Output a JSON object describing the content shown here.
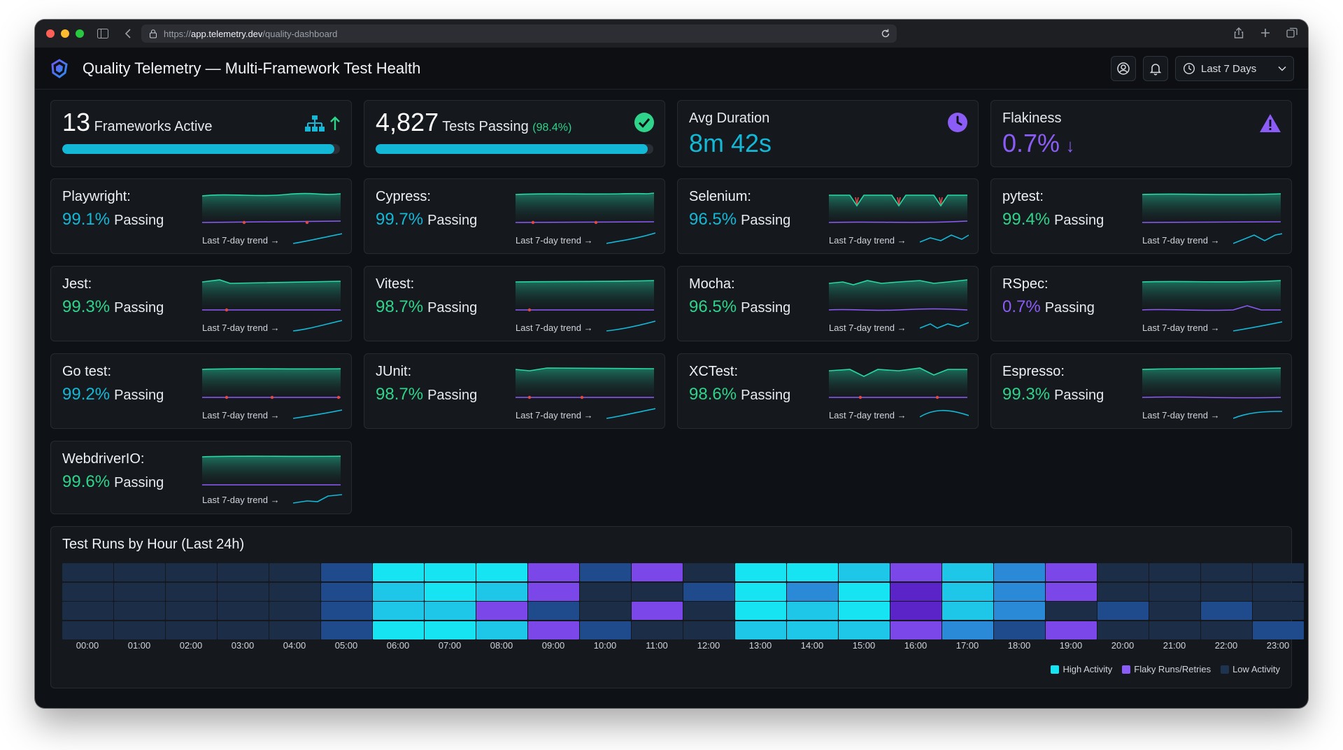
{
  "browser": {
    "url_prefix": "https://",
    "url_domain": "app.telemetry.dev",
    "url_path": "/quality-dashboard"
  },
  "header": {
    "title": "Quality Telemetry — Multi-Framework Test Health",
    "range_label": "Last 7 Days"
  },
  "kpis": {
    "frameworks": {
      "value": "13",
      "label": "Frameworks Active",
      "progress": 0.98
    },
    "passing": {
      "value": "4,827",
      "label": "Tests Passing",
      "pct": "(98.4%)",
      "progress": 0.98
    },
    "duration": {
      "label": "Avg Duration",
      "value": "8m 42s"
    },
    "flakiness": {
      "label": "Flakiness",
      "value": "0.7%",
      "arrow": "↓"
    }
  },
  "colors": {
    "cyan": "#12b8d6",
    "green": "#2fd38a",
    "purple": "#8b5cf6",
    "teal_line": "#28d7a4",
    "red": "#e04848"
  },
  "trend_label": "Last 7-day trend",
  "passing_word": "Passing",
  "frameworks": [
    {
      "name": "Playwright:",
      "pct": "99.1%",
      "color": "cyan"
    },
    {
      "name": "Cypress:",
      "pct": "99.7%",
      "color": "cyan"
    },
    {
      "name": "Selenium:",
      "pct": "96.5%",
      "color": "cyan"
    },
    {
      "name": "pytest:",
      "pct": "99.4%",
      "color": "green"
    },
    {
      "name": "Jest:",
      "pct": "99.3%",
      "color": "green"
    },
    {
      "name": "Vitest:",
      "pct": "98.7%",
      "color": "green"
    },
    {
      "name": "Mocha:",
      "pct": "96.5%",
      "color": "green"
    },
    {
      "name": "RSpec:",
      "pct": "0.7%",
      "color": "purple"
    },
    {
      "name": "Go test:",
      "pct": "99.2%",
      "color": "cyan"
    },
    {
      "name": "JUnit:",
      "pct": "98.7%",
      "color": "green"
    },
    {
      "name": "XCTest:",
      "pct": "98.6%",
      "color": "green"
    },
    {
      "name": "Espresso:",
      "pct": "99.3%",
      "color": "green"
    },
    {
      "name": "WebdriverIO:",
      "pct": "99.6%",
      "color": "green"
    }
  ],
  "heatmap": {
    "title": "Test Runs by Hour (Last 24h)",
    "hours": [
      "00:00",
      "01:00",
      "02:00",
      "03:00",
      "04:00",
      "05:00",
      "06:00",
      "07:00",
      "08:00",
      "09:00",
      "10:00",
      "11:00",
      "12:00",
      "13:00",
      "14:00",
      "15:00",
      "16:00",
      "17:00",
      "18:00",
      "19:00",
      "20:00",
      "21:00",
      "22:00",
      "23:00"
    ],
    "levels": [
      [
        "L",
        "L",
        "L",
        "L",
        "L",
        "M",
        "H",
        "H",
        "H",
        "F",
        "M",
        "F",
        "L",
        "H",
        "H",
        "H2",
        "F",
        "H2",
        "M2",
        "F",
        "L",
        "L",
        "L",
        "L"
      ],
      [
        "L",
        "L",
        "L",
        "L",
        "L",
        "M",
        "H2",
        "H",
        "H2",
        "F",
        "L",
        "L",
        "M",
        "H",
        "M2",
        "H",
        "F2",
        "H2",
        "M2",
        "F",
        "L",
        "L",
        "L",
        "L"
      ],
      [
        "L",
        "L",
        "L",
        "L",
        "L",
        "M",
        "H2",
        "H2",
        "F",
        "M",
        "L",
        "F",
        "L",
        "H",
        "H2",
        "H",
        "F2",
        "H2",
        "M2",
        "L",
        "M",
        "L",
        "M",
        "L"
      ],
      [
        "L",
        "L",
        "L",
        "L",
        "L",
        "M",
        "H",
        "H",
        "H2",
        "F",
        "M",
        "L",
        "L",
        "H2",
        "H2",
        "H2",
        "F",
        "M2",
        "M",
        "F",
        "L",
        "L",
        "L",
        "M"
      ]
    ],
    "legend": {
      "high": "High Activity",
      "flaky": "Flaky Runs/Retries",
      "low": "Low Activity"
    }
  }
}
